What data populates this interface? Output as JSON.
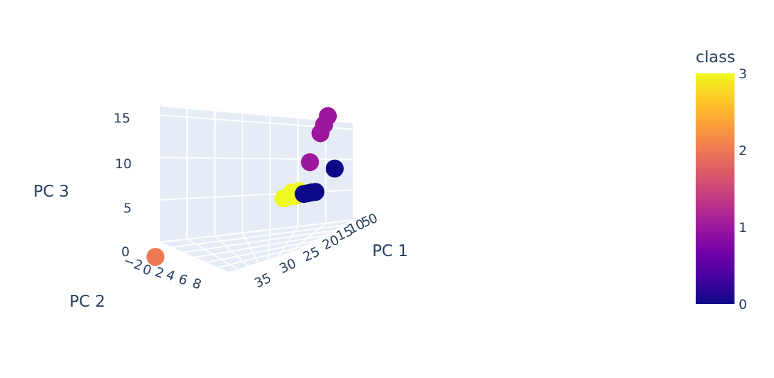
{
  "chart_data": {
    "type": "scatter",
    "projection": "3d",
    "axes": {
      "x": {
        "title": "PC 1",
        "tick_labels": [
          "35",
          "30",
          "25",
          "20",
          "15",
          "10",
          "5",
          "0"
        ]
      },
      "y": {
        "title": "PC 2",
        "tick_labels": [
          "−2",
          "0",
          "2",
          "4",
          "6",
          "8"
        ]
      },
      "z": {
        "title": "PC 3",
        "tick_labels": [
          "0",
          "5",
          "10",
          "15"
        ],
        "range": [
          0,
          16
        ]
      }
    },
    "colorbar": {
      "title": "class",
      "tick_labels": [
        "0",
        "1",
        "2",
        "3"
      ],
      "range": [
        0,
        3
      ],
      "colorscale": [
        "#0d0887",
        "#46039f",
        "#7201a8",
        "#9c179e",
        "#bd3786",
        "#d8576b",
        "#ed7953",
        "#fb9f3a",
        "#fdca26",
        "#f0f921"
      ]
    },
    "grid": true,
    "points": [
      {
        "class": 2,
        "pc1": 37,
        "pc2": 9,
        "pc3": 1
      },
      {
        "class": 1,
        "pc1": 2,
        "pc2": 0,
        "pc3": 14.5
      },
      {
        "class": 1,
        "pc1": 3,
        "pc2": 0,
        "pc3": 13.5
      },
      {
        "class": 1,
        "pc1": 4,
        "pc2": 0,
        "pc3": 12.5
      },
      {
        "class": 1,
        "pc1": 6,
        "pc2": 1,
        "pc3": 9
      },
      {
        "class": 0,
        "pc1": 2,
        "pc2": -1,
        "pc3": 7.5
      },
      {
        "class": 0,
        "pc1": 6,
        "pc2": 0,
        "pc3": 5
      },
      {
        "class": 0,
        "pc1": 6,
        "pc2": 1,
        "pc3": 5
      },
      {
        "class": 0,
        "pc1": 7,
        "pc2": 1,
        "pc3": 5
      },
      {
        "class": 0,
        "pc1": 7,
        "pc2": 2,
        "pc3": 5
      },
      {
        "class": 3,
        "pc1": 8,
        "pc2": 2,
        "pc3": 5.5
      },
      {
        "class": 3,
        "pc1": 9,
        "pc2": 2,
        "pc3": 5
      },
      {
        "class": 3,
        "pc1": 9,
        "pc2": 3,
        "pc3": 5.5
      },
      {
        "class": 3,
        "pc1": 10,
        "pc2": 3,
        "pc3": 5
      },
      {
        "class": 3,
        "pc1": 11,
        "pc2": 3,
        "pc3": 5
      }
    ]
  }
}
